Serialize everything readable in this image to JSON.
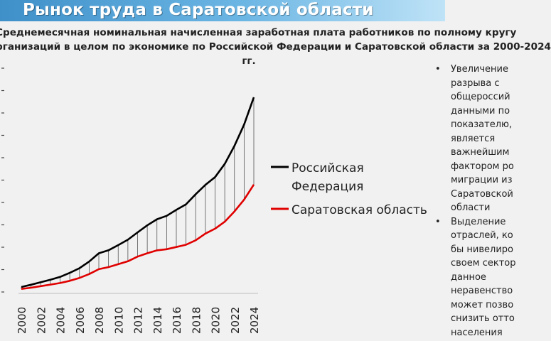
{
  "header": {
    "title": "Рынок труда в Саратовской области"
  },
  "chart_data": {
    "type": "line",
    "title_lines": [
      "Среднемесячная номинальная начисленная заработная плата работников по полному кругу",
      "рганизаций в целом по экономике по Российской Федерации и Саратовской области за 2000-2024",
      "гг."
    ],
    "x": [
      2000,
      2001,
      2002,
      2003,
      2004,
      2005,
      2006,
      2007,
      2008,
      2009,
      2010,
      2011,
      2012,
      2013,
      2014,
      2015,
      2016,
      2017,
      2018,
      2019,
      2020,
      2021,
      2022,
      2023,
      2024
    ],
    "x_tick_labels": [
      "2000",
      "2002",
      "2004",
      "2006",
      "2008",
      "2010",
      "2012",
      "2014",
      "2016",
      "2018",
      "2020",
      "2022",
      "2024"
    ],
    "series": [
      {
        "name": "Российская Федерация",
        "color": "#000000",
        "values": [
          2223,
          3240,
          4360,
          5498,
          6740,
          8555,
          10634,
          13593,
          17290,
          18638,
          20952,
          23369,
          26629,
          29792,
          32495,
          34030,
          36709,
          39167,
          43724,
          47867,
          51344,
          57244,
          65338,
          74854,
          87000
        ]
      },
      {
        "name": "Саратовская область",
        "color": "#e00000",
        "values": [
          1350,
          1900,
          2600,
          3300,
          4000,
          5000,
          6300,
          8000,
          10200,
          11100,
          12400,
          13700,
          15800,
          17300,
          18600,
          19100,
          20100,
          21100,
          23100,
          26100,
          28300,
          31400,
          36000,
          41300,
          48000
        ]
      }
    ],
    "legend": [
      {
        "lines": [
          "Российская",
          "Федерация"
        ],
        "color": "#000000"
      },
      {
        "lines": [
          "Саратовская область"
        ],
        "color": "#e00000"
      }
    ],
    "legend_position": "right",
    "ylim": [
      0,
      100000
    ],
    "y_gridlines": false,
    "drop_lines": true
  },
  "bullets": [
    {
      "lines": [
        "Увеличение",
        "разрыва с",
        "общероссий",
        "данными по",
        "показателю,",
        "является",
        "важнейшим",
        "фактором ро",
        "миграции из",
        "Саратовской",
        "области"
      ]
    },
    {
      "lines": [
        "Выделение",
        "отраслей, ко",
        "бы нивелиро",
        "своем сектор",
        "данное",
        "неравенство",
        "может позво",
        "снизить отто",
        "населения"
      ]
    }
  ]
}
